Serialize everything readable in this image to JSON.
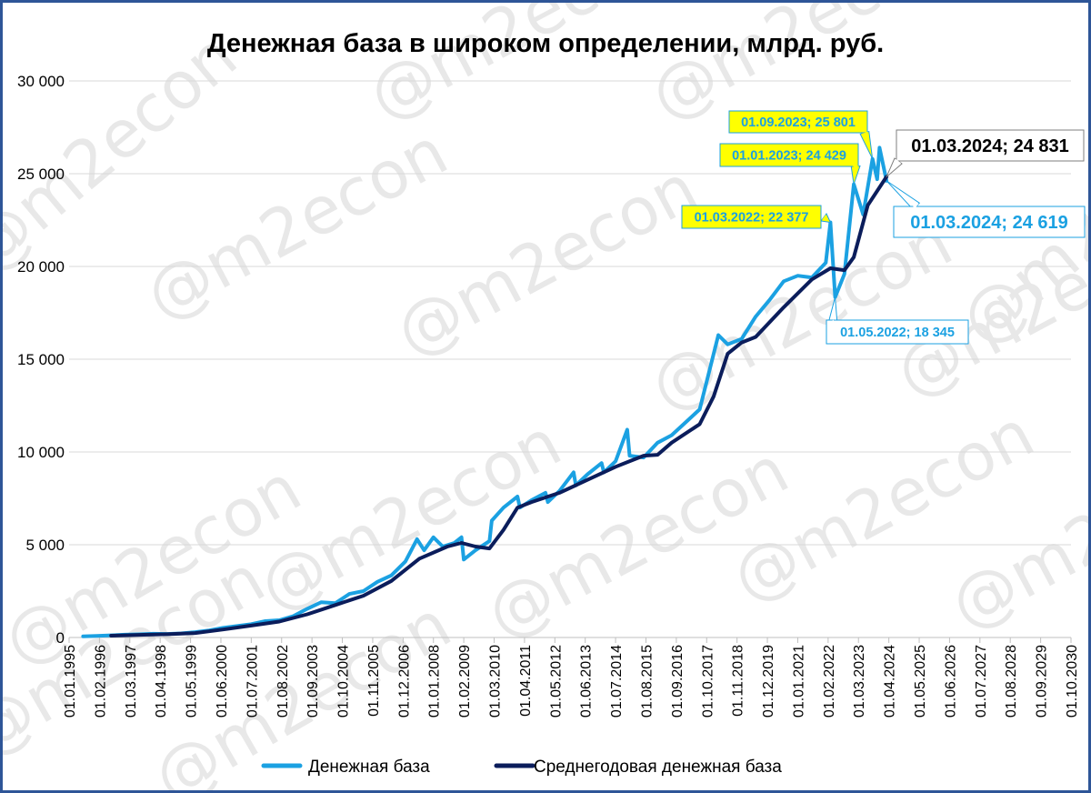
{
  "chart_data": {
    "type": "line",
    "title": "Денежная база в широком определении, млрд. руб.",
    "xlabel": "",
    "ylabel": "",
    "ylim": [
      0,
      30000
    ],
    "y_ticks": [
      0,
      5000,
      10000,
      15000,
      20000,
      25000,
      30000
    ],
    "y_tick_labels": [
      "0",
      "5 000",
      "10 000",
      "15 000",
      "20 000",
      "25 000",
      "30 000"
    ],
    "x_tick_labels": [
      "01.01.1995",
      "01.02.1996",
      "01.03.1997",
      "01.04.1998",
      "01.05.1999",
      "01.06.2000",
      "01.07.2001",
      "01.08.2002",
      "01.09.2003",
      "01.10.2004",
      "01.11.2005",
      "01.12.2006",
      "01.01.2008",
      "01.02.2009",
      "01.03.2010",
      "01.04.2011",
      "01.05.2012",
      "01.06.2013",
      "01.07.2014",
      "01.08.2015",
      "01.09.2016",
      "01.10.2017",
      "01.11.2018",
      "01.12.2019",
      "01.01.2021",
      "01.02.2022",
      "01.03.2023",
      "01.04.2024",
      "01.05.2025",
      "01.06.2026",
      "01.07.2027",
      "01.08.2028",
      "01.09.2029",
      "01.10.2030"
    ],
    "grid": true,
    "legend_position": "bottom",
    "watermark": "@m2econ",
    "series": [
      {
        "name": "Денежная база",
        "color": "#1ba1e2",
        "points": [
          [
            "1995-07-01",
            60
          ],
          [
            "1996-01-01",
            90
          ],
          [
            "1996-07-01",
            120
          ],
          [
            "1997-01-01",
            150
          ],
          [
            "1997-07-01",
            170
          ],
          [
            "1998-01-01",
            200
          ],
          [
            "1998-07-01",
            190
          ],
          [
            "1999-01-01",
            220
          ],
          [
            "1999-07-01",
            290
          ],
          [
            "2000-01-01",
            380
          ],
          [
            "2000-07-01",
            520
          ],
          [
            "2001-01-01",
            620
          ],
          [
            "2001-07-01",
            720
          ],
          [
            "2002-01-01",
            880
          ],
          [
            "2002-07-01",
            930
          ],
          [
            "2003-01-01",
            1150
          ],
          [
            "2003-07-01",
            1550
          ],
          [
            "2004-01-01",
            1900
          ],
          [
            "2004-07-01",
            1850
          ],
          [
            "2005-01-01",
            2350
          ],
          [
            "2005-07-01",
            2500
          ],
          [
            "2006-01-01",
            3000
          ],
          [
            "2006-07-01",
            3350
          ],
          [
            "2007-01-01",
            4100
          ],
          [
            "2007-06-01",
            5300
          ],
          [
            "2007-09-01",
            4700
          ],
          [
            "2008-01-01",
            5400
          ],
          [
            "2008-05-01",
            4900
          ],
          [
            "2008-10-01",
            5100
          ],
          [
            "2009-01-01",
            5400
          ],
          [
            "2009-02-01",
            4200
          ],
          [
            "2009-07-01",
            4700
          ],
          [
            "2010-01-01",
            5200
          ],
          [
            "2010-02-01",
            6300
          ],
          [
            "2010-07-01",
            7000
          ],
          [
            "2011-01-01",
            7600
          ],
          [
            "2011-02-01",
            7000
          ],
          [
            "2011-07-01",
            7400
          ],
          [
            "2012-01-01",
            7800
          ],
          [
            "2012-02-01",
            7300
          ],
          [
            "2012-07-01",
            7900
          ],
          [
            "2013-01-01",
            8900
          ],
          [
            "2013-02-01",
            8200
          ],
          [
            "2013-07-01",
            8800
          ],
          [
            "2014-01-01",
            9400
          ],
          [
            "2014-02-01",
            8900
          ],
          [
            "2014-07-01",
            9500
          ],
          [
            "2014-12-01",
            11200
          ],
          [
            "2015-01-01",
            9800
          ],
          [
            "2015-07-01",
            9700
          ],
          [
            "2016-01-01",
            10500
          ],
          [
            "2016-07-01",
            10900
          ],
          [
            "2017-01-01",
            11600
          ],
          [
            "2017-07-01",
            12300
          ],
          [
            "2018-01-01",
            15300
          ],
          [
            "2018-03-01",
            16300
          ],
          [
            "2018-07-01",
            15800
          ],
          [
            "2019-01-01",
            16100
          ],
          [
            "2019-07-01",
            17300
          ],
          [
            "2020-01-01",
            18200
          ],
          [
            "2020-07-01",
            19200
          ],
          [
            "2021-01-01",
            19500
          ],
          [
            "2021-07-01",
            19400
          ],
          [
            "2022-01-01",
            20200
          ],
          [
            "2022-03-01",
            22377
          ],
          [
            "2022-05-01",
            18345
          ],
          [
            "2022-09-01",
            19600
          ],
          [
            "2023-01-01",
            24429
          ],
          [
            "2023-05-01",
            22800
          ],
          [
            "2023-09-01",
            25801
          ],
          [
            "2023-11-01",
            24700
          ],
          [
            "2023-12-01",
            26400
          ],
          [
            "2024-03-01",
            24619
          ]
        ]
      },
      {
        "name": "Среднегодовая денежная база",
        "color": "#0b1d5b",
        "points": [
          [
            "1996-07-01",
            100
          ],
          [
            "1997-07-01",
            140
          ],
          [
            "1998-07-01",
            175
          ],
          [
            "1999-07-01",
            240
          ],
          [
            "2000-07-01",
            430
          ],
          [
            "2001-07-01",
            640
          ],
          [
            "2002-07-01",
            860
          ],
          [
            "2003-07-01",
            1250
          ],
          [
            "2004-07-01",
            1750
          ],
          [
            "2005-07-01",
            2250
          ],
          [
            "2006-07-01",
            3050
          ],
          [
            "2007-07-01",
            4250
          ],
          [
            "2008-07-01",
            4900
          ],
          [
            "2009-01-01",
            5100
          ],
          [
            "2009-07-01",
            4900
          ],
          [
            "2010-01-01",
            4800
          ],
          [
            "2010-07-01",
            5800
          ],
          [
            "2011-01-01",
            7000
          ],
          [
            "2011-07-01",
            7300
          ],
          [
            "2012-07-01",
            7800
          ],
          [
            "2013-07-01",
            8500
          ],
          [
            "2014-07-01",
            9200
          ],
          [
            "2015-07-01",
            9800
          ],
          [
            "2016-01-01",
            9850
          ],
          [
            "2016-07-01",
            10500
          ],
          [
            "2017-07-01",
            11500
          ],
          [
            "2018-01-01",
            13000
          ],
          [
            "2018-07-01",
            15300
          ],
          [
            "2019-01-01",
            15900
          ],
          [
            "2019-07-01",
            16200
          ],
          [
            "2020-07-01",
            17800
          ],
          [
            "2021-07-01",
            19300
          ],
          [
            "2022-03-01",
            19900
          ],
          [
            "2022-09-01",
            19800
          ],
          [
            "2023-01-01",
            20500
          ],
          [
            "2023-07-01",
            23300
          ],
          [
            "2024-03-01",
            24831
          ]
        ]
      }
    ],
    "annotations": [
      {
        "text": "01.09.2023;  25 801",
        "date": "2023-09-01",
        "value": 25801,
        "style": "yellow"
      },
      {
        "text": "01.01.2023;  24 429",
        "date": "2023-01-01",
        "value": 24429,
        "style": "yellow"
      },
      {
        "text": "01.03.2022;  22 377",
        "date": "2022-03-01",
        "value": 22377,
        "style": "yellow"
      },
      {
        "text": "01.05.2022;  18 345",
        "date": "2022-05-01",
        "value": 18345,
        "style": "white-blue"
      },
      {
        "text": "01.03.2024;  24 831",
        "date": "2024-03-01",
        "value": 24831,
        "style": "dark-large"
      },
      {
        "text": "01.03.2024;  24 619",
        "date": "2024-03-01",
        "value": 24619,
        "style": "blue-large"
      }
    ],
    "colors": {
      "base": "#1ba1e2",
      "average": "#0b1d5b",
      "frame": "#2e5597",
      "grid": "#d9d9d9",
      "callout_yellow": "#ffff00",
      "callout_text_blue": "#1ba1e2"
    }
  }
}
